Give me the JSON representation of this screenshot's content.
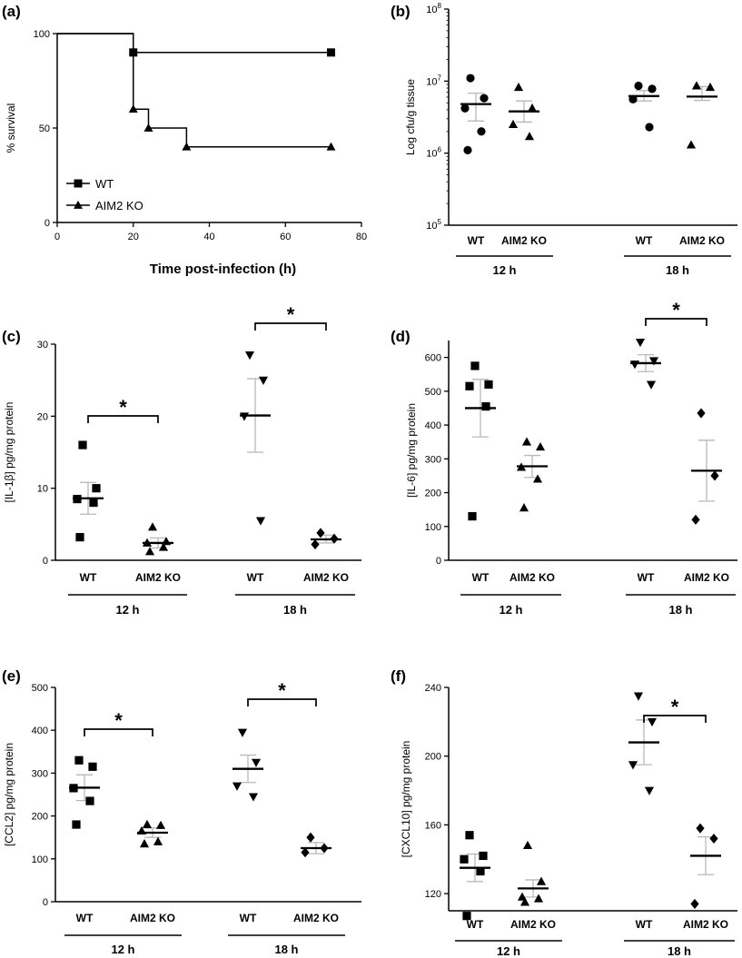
{
  "chart_data": [
    {
      "panel": "(a)",
      "type": "line",
      "xlabel": "Time  post-infection (h)",
      "ylabel": "% survival",
      "xlim": [
        0,
        80
      ],
      "ylim": [
        0,
        100
      ],
      "xticks": [
        0,
        20,
        40,
        60,
        80
      ],
      "yticks": [
        0,
        50,
        100
      ],
      "legend": "bottom-left",
      "series": [
        {
          "name": "WT",
          "marker": "square",
          "x": [
            0,
            20,
            20,
            72
          ],
          "y": [
            100,
            100,
            90,
            90
          ],
          "marker_points": [
            [
              20,
              90
            ],
            [
              72,
              90
            ]
          ]
        },
        {
          "name": "AIM2 KO",
          "marker": "triangle",
          "x": [
            0,
            20,
            20,
            24,
            24,
            34,
            34,
            72
          ],
          "y": [
            100,
            100,
            60,
            60,
            50,
            50,
            40,
            40
          ],
          "marker_points": [
            [
              20,
              60
            ],
            [
              24,
              50
            ],
            [
              34,
              40
            ],
            [
              72,
              40
            ]
          ]
        }
      ]
    },
    {
      "panel": "(b)",
      "type": "scatter",
      "ylabel": "Log cfu/g tissue",
      "scale": "log",
      "ylim": [
        100000,
        100000000
      ],
      "ytick_labels": [
        {
          "v": 100000,
          "base": "10",
          "exp": "5"
        },
        {
          "v": 1000000,
          "base": "10",
          "exp": "6"
        },
        {
          "v": 10000000,
          "base": "10",
          "exp": "7"
        },
        {
          "v": 100000000,
          "base": "10",
          "exp": "8"
        }
      ],
      "groups": [
        {
          "time": "12 h",
          "categories": [
            {
              "label": "WT",
              "marker": "circle",
              "values": [
                11000000,
                5800000,
                4200000,
                2000000,
                1100000
              ],
              "mean": 4800000,
              "sem_low": 2800000,
              "sem_high": 6800000
            },
            {
              "label": "AIM2 KO",
              "marker": "triangle",
              "values": [
                8200000,
                4200000,
                2500000,
                1700000
              ],
              "mean": 3800000,
              "sem_low": 2700000,
              "sem_high": 5300000
            }
          ]
        },
        {
          "time": "18 h",
          "categories": [
            {
              "label": "WT",
              "marker": "circle",
              "values": [
                8600000,
                7800000,
                5600000,
                2300000
              ],
              "mean": 6200000,
              "sem_low": 5300000,
              "sem_high": 7400000
            },
            {
              "label": "AIM2 KO",
              "marker": "triangle",
              "values": [
                8600000,
                8200000,
                1300000
              ],
              "mean": 6100000,
              "sem_low": 5400000,
              "sem_high": 8400000
            }
          ]
        }
      ]
    },
    {
      "panel": "(c)",
      "type": "scatter",
      "ylabel": "[IL-1β] pg/mg protein",
      "ylim": [
        0,
        30
      ],
      "yticks": [
        0,
        10,
        20,
        30
      ],
      "significance": [
        "*",
        "*"
      ],
      "groups": [
        {
          "time": "12 h",
          "categories": [
            {
              "label": "WT",
              "marker": "square",
              "values": [
                16,
                10,
                8.5,
                8,
                3.2
              ],
              "mean": 8.6,
              "sem_low": 6.4,
              "sem_high": 10.8
            },
            {
              "label": "AIM2 KO",
              "marker": "triangle",
              "values": [
                4.6,
                2.6,
                2.4,
                1.8,
                1.2
              ],
              "mean": 2.4,
              "sem_low": 1.7,
              "sem_high": 3.1
            }
          ]
        },
        {
          "time": "18 h",
          "categories": [
            {
              "label": "WT",
              "marker": "triangle-down",
              "values": [
                28.5,
                25,
                20,
                5.5
              ],
              "mean": 20.1,
              "sem_low": 15,
              "sem_high": 25.2
            },
            {
              "label": "AIM2 KO",
              "marker": "diamond",
              "values": [
                3.8,
                3,
                2.2
              ],
              "mean": 2.9,
              "sem_low": 2.4,
              "sem_high": 3.5
            }
          ]
        }
      ]
    },
    {
      "panel": "(d)",
      "type": "scatter",
      "ylabel": "[IL-6] pg/mg protein",
      "ylim": [
        0,
        650
      ],
      "yticks": [
        0,
        100,
        200,
        300,
        400,
        500,
        600
      ],
      "significance": [
        "*"
      ],
      "groups": [
        {
          "time": "12 h",
          "categories": [
            {
              "label": "WT",
              "marker": "square",
              "values": [
                575,
                520,
                515,
                455,
                130
              ],
              "mean": 450,
              "sem_low": 365,
              "sem_high": 535
            },
            {
              "label": "AIM2 KO",
              "marker": "triangle",
              "values": [
                350,
                335,
                275,
                240,
                155
              ],
              "mean": 278,
              "sem_low": 245,
              "sem_high": 310
            },
            {
              "label": "",
              "marker": "",
              "values": []
            }
          ]
        },
        {
          "time": "18 h",
          "categories": [
            {
              "label": "WT",
              "marker": "triangle-down",
              "values": [
                645,
                590,
                580,
                520
              ],
              "mean": 583,
              "sem_low": 558,
              "sem_high": 608
            },
            {
              "label": "AIM2 KO",
              "marker": "diamond",
              "values": [
                435,
                250,
                120
              ],
              "mean": 265,
              "sem_low": 175,
              "sem_high": 355
            }
          ]
        }
      ]
    },
    {
      "panel": "(e)",
      "type": "scatter",
      "ylabel": "[CCL2] pg/mg protein",
      "ylim": [
        0,
        500
      ],
      "yticks": [
        0,
        100,
        200,
        300,
        400,
        500
      ],
      "significance": [
        "*",
        "*"
      ],
      "groups": [
        {
          "time": "12 h",
          "categories": [
            {
              "label": "WT",
              "marker": "square",
              "values": [
                330,
                315,
                265,
                235,
                180
              ],
              "mean": 266,
              "sem_low": 236,
              "sem_high": 296
            },
            {
              "label": "AIM2 KO",
              "marker": "triangle",
              "values": [
                180,
                178,
                165,
                140,
                135
              ],
              "mean": 161,
              "sem_low": 150,
              "sem_high": 172
            }
          ]
        },
        {
          "time": "18 h",
          "categories": [
            {
              "label": "WT",
              "marker": "triangle-down",
              "values": [
                395,
                325,
                270,
                245
              ],
              "mean": 310,
              "sem_low": 278,
              "sem_high": 342
            },
            {
              "label": "AIM2 KO",
              "marker": "diamond",
              "values": [
                150,
                125,
                115
              ],
              "mean": 125,
              "sem_low": 112,
              "sem_high": 138
            }
          ]
        }
      ]
    },
    {
      "panel": "(f)",
      "type": "scatter",
      "ylabel": "[CXCL10] pg/mg protein",
      "ylim": [
        110,
        240
      ],
      "yticks": [
        120,
        160,
        200,
        240
      ],
      "significance": [
        "*"
      ],
      "groups": [
        {
          "time": "12 h",
          "categories": [
            {
              "label": "WT",
              "marker": "square",
              "values": [
                154,
                142,
                140,
                133,
                107
              ],
              "mean": 135,
              "sem_low": 127,
              "sem_high": 143
            },
            {
              "label": "AIM2 KO",
              "marker": "triangle",
              "values": [
                148,
                127,
                118,
                117,
                115
              ],
              "mean": 123,
              "sem_low": 118,
              "sem_high": 128
            }
          ]
        },
        {
          "time": "18 h",
          "categories": [
            {
              "label": "WT",
              "marker": "triangle-down",
              "values": [
                235,
                220,
                195,
                180
              ],
              "mean": 208,
              "sem_low": 195,
              "sem_high": 221
            },
            {
              "label": "AIM2 KO",
              "marker": "diamond",
              "values": [
                158,
                152,
                114
              ],
              "mean": 142,
              "sem_low": 131,
              "sem_high": 153
            }
          ]
        }
      ]
    }
  ]
}
